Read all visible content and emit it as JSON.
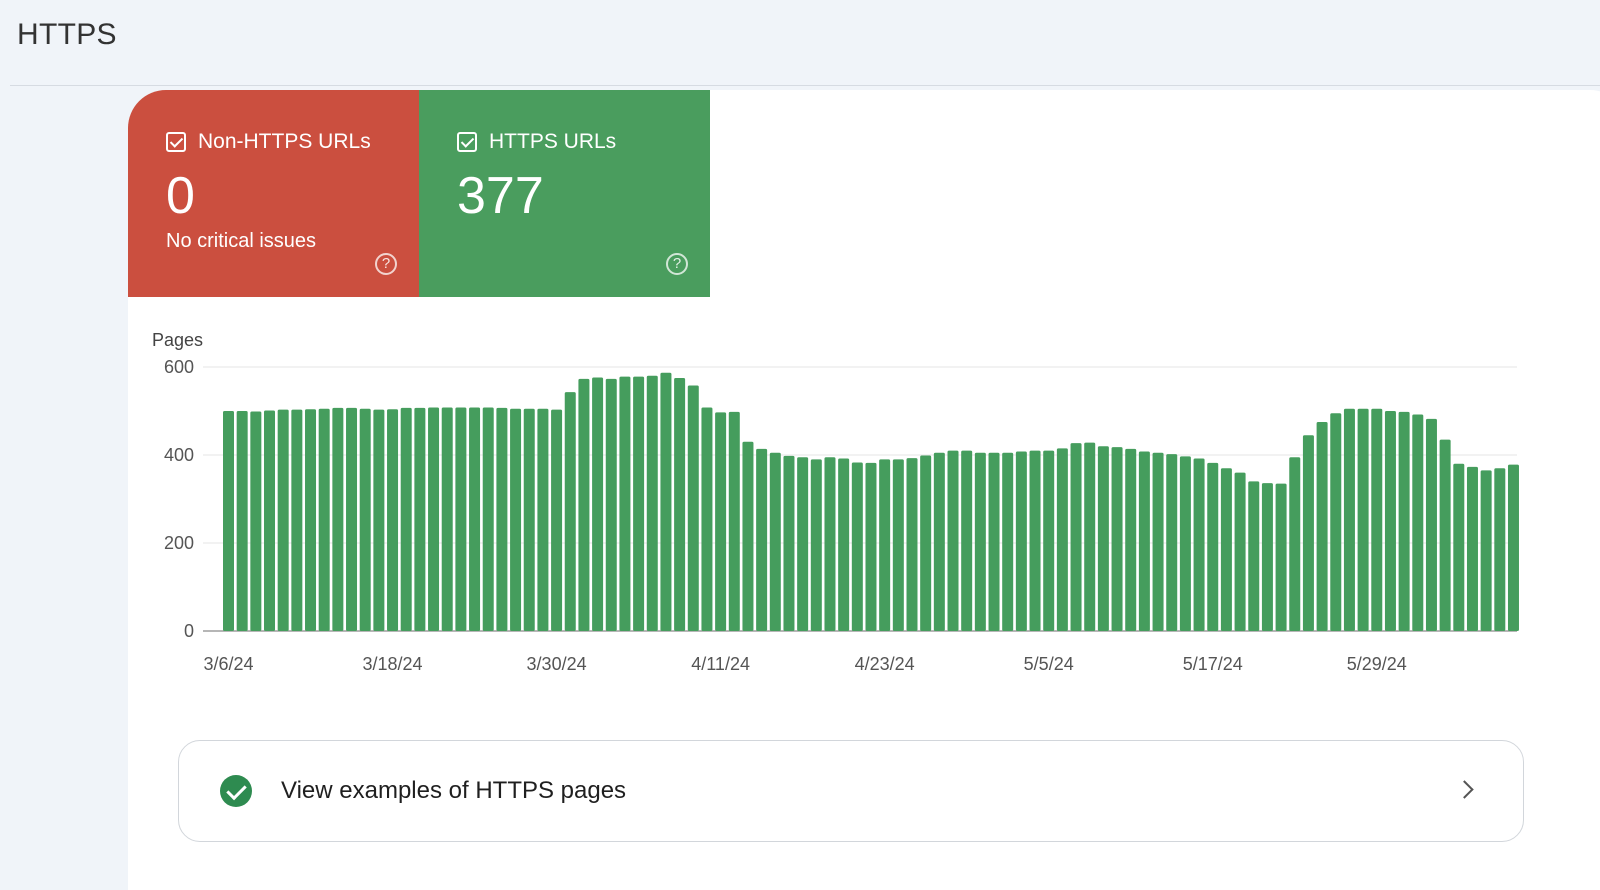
{
  "header": {
    "title": "HTTPS"
  },
  "tiles": [
    {
      "label": "Non-HTTPS URLs",
      "value": "0",
      "subtitle": "No critical issues",
      "color": "#cb4f3f",
      "checked": true
    },
    {
      "label": "HTTPS URLs",
      "value": "377",
      "color": "#4a9d5e",
      "checked": true
    }
  ],
  "examples": {
    "label": "View examples of HTTPS pages"
  },
  "chart_data": {
    "type": "bar",
    "ylabel": "Pages",
    "ylim": [
      0,
      600
    ],
    "yticks": [
      0,
      200,
      400,
      600
    ],
    "bar_color": "#459d5d",
    "grid": true,
    "x_tick_labels": [
      {
        "label": "3/6/24",
        "index": 0
      },
      {
        "label": "3/18/24",
        "index": 12
      },
      {
        "label": "3/30/24",
        "index": 24
      },
      {
        "label": "4/11/24",
        "index": 36
      },
      {
        "label": "4/23/24",
        "index": 48
      },
      {
        "label": "5/5/24",
        "index": 60
      },
      {
        "label": "5/17/24",
        "index": 72
      },
      {
        "label": "5/29/24",
        "index": 84
      }
    ],
    "values": [
      500,
      500,
      499,
      501,
      503,
      503,
      504,
      505,
      507,
      507,
      505,
      503,
      504,
      507,
      507,
      508,
      508,
      508,
      508,
      508,
      507,
      505,
      505,
      505,
      503,
      543,
      573,
      576,
      573,
      578,
      578,
      580,
      587,
      575,
      558,
      508,
      497,
      498,
      430,
      414,
      405,
      398,
      395,
      390,
      395,
      392,
      383,
      382,
      390,
      390,
      393,
      399,
      405,
      410,
      410,
      405,
      405,
      405,
      408,
      410,
      410,
      415,
      427,
      428,
      420,
      418,
      414,
      408,
      405,
      402,
      397,
      392,
      382,
      370,
      360,
      340,
      336,
      335,
      395,
      445,
      475,
      495,
      505,
      505,
      505,
      500,
      498,
      492,
      482,
      435,
      380,
      373,
      365,
      370,
      378
    ]
  }
}
